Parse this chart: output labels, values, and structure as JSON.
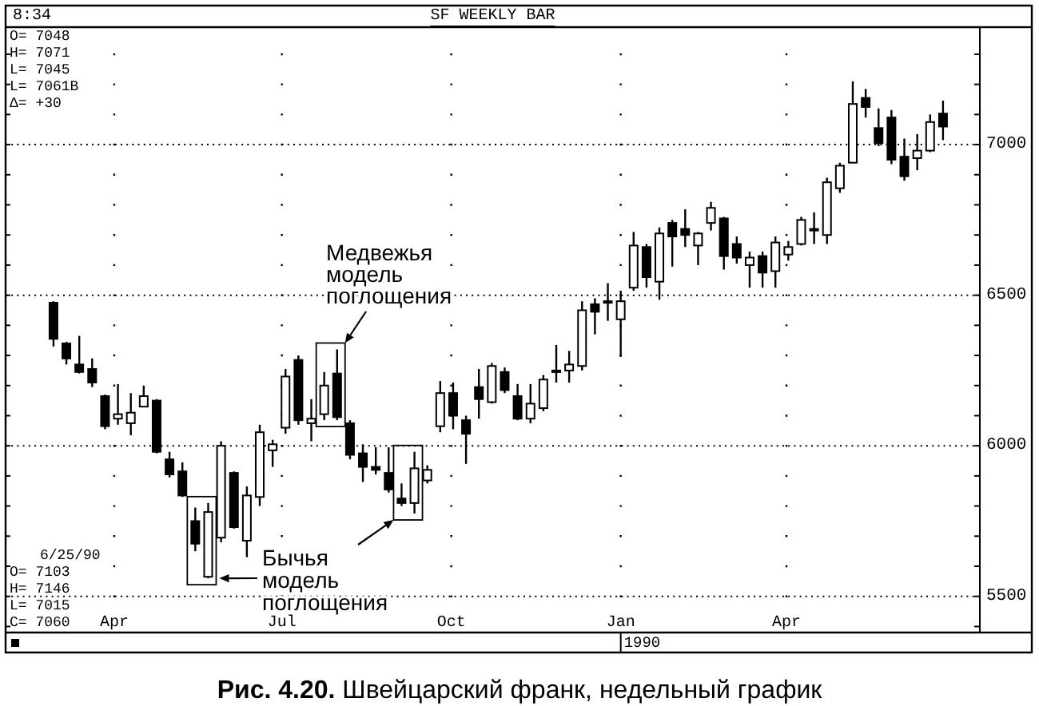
{
  "chart_data": {
    "type": "candlestick",
    "title": "SF WEEKLY BAR",
    "x": [
      "1989-02-27",
      "1989-03-06",
      "1989-03-13",
      "1989-03-20",
      "1989-03-27",
      "1989-04-03",
      "1989-04-10",
      "1989-04-17",
      "1989-04-24",
      "1989-05-01",
      "1989-05-08",
      "1989-05-15",
      "1989-05-22",
      "1989-05-29",
      "1989-06-05",
      "1989-06-12",
      "1989-06-19",
      "1989-06-26",
      "1989-07-03",
      "1989-07-10",
      "1989-07-17",
      "1989-07-24",
      "1989-07-31",
      "1989-08-07",
      "1989-08-14",
      "1989-08-21",
      "1989-08-28",
      "1989-09-04",
      "1989-09-11",
      "1989-09-18",
      "1989-09-25",
      "1989-10-02",
      "1989-10-09",
      "1989-10-16",
      "1989-10-23",
      "1989-10-30",
      "1989-11-06",
      "1989-11-13",
      "1989-11-20",
      "1989-11-27",
      "1989-12-04",
      "1989-12-11",
      "1989-12-18",
      "1989-12-25",
      "1990-01-01",
      "1990-01-08",
      "1990-01-15",
      "1990-01-22",
      "1990-01-29",
      "1990-02-05",
      "1990-02-12",
      "1990-02-19",
      "1990-02-26",
      "1990-03-05",
      "1990-03-12",
      "1990-03-19",
      "1990-03-26",
      "1990-04-02",
      "1990-04-09",
      "1990-04-16",
      "1990-04-23",
      "1990-04-30",
      "1990-05-07",
      "1990-05-14",
      "1990-05-21",
      "1990-05-28",
      "1990-06-04",
      "1990-06-11",
      "1990-06-18",
      "1990-06-25"
    ],
    "ohlc": [
      [
        6475,
        6480,
        6330,
        6355
      ],
      [
        6340,
        6345,
        6270,
        6290
      ],
      [
        6270,
        6365,
        6240,
        6245
      ],
      [
        6255,
        6290,
        6195,
        6210
      ],
      [
        6165,
        6170,
        6055,
        6065
      ],
      [
        6090,
        6205,
        6070,
        6105
      ],
      [
        6075,
        6175,
        6035,
        6110
      ],
      [
        6130,
        6200,
        6130,
        6165
      ],
      [
        6150,
        6155,
        5975,
        5980
      ],
      [
        5955,
        5980,
        5895,
        5905
      ],
      [
        5915,
        5945,
        5830,
        5835
      ],
      [
        5750,
        5795,
        5650,
        5675
      ],
      [
        5565,
        5810,
        5560,
        5780
      ],
      [
        5695,
        6015,
        5680,
        6000
      ],
      [
        5910,
        5915,
        5725,
        5730
      ],
      [
        5685,
        5865,
        5630,
        5835
      ],
      [
        5830,
        6070,
        5800,
        6045
      ],
      [
        5985,
        6020,
        5930,
        6005
      ],
      [
        6060,
        6255,
        6040,
        6230
      ],
      [
        6285,
        6300,
        6070,
        6085
      ],
      [
        6075,
        6155,
        6015,
        6090
      ],
      [
        6105,
        6245,
        6085,
        6200
      ],
      [
        6240,
        6320,
        6085,
        6095
      ],
      [
        6075,
        6085,
        5955,
        5970
      ],
      [
        5975,
        6005,
        5880,
        5930
      ],
      [
        5930,
        5995,
        5905,
        5920
      ],
      [
        5910,
        5995,
        5845,
        5855
      ],
      [
        5825,
        5875,
        5800,
        5810
      ],
      [
        5810,
        5980,
        5775,
        5925
      ],
      [
        5885,
        5935,
        5875,
        5920
      ],
      [
        6065,
        6215,
        6045,
        6175
      ],
      [
        6175,
        6210,
        6055,
        6100
      ],
      [
        6085,
        6100,
        5940,
        6040
      ],
      [
        6195,
        6255,
        6090,
        6155
      ],
      [
        6145,
        6275,
        6140,
        6265
      ],
      [
        6245,
        6260,
        6175,
        6185
      ],
      [
        6165,
        6205,
        6085,
        6090
      ],
      [
        6090,
        6205,
        6075,
        6140
      ],
      [
        6125,
        6235,
        6115,
        6220
      ],
      [
        6245,
        6335,
        6210,
        6250
      ],
      [
        6250,
        6315,
        6210,
        6270
      ],
      [
        6265,
        6480,
        6250,
        6450
      ],
      [
        6470,
        6490,
        6370,
        6445
      ],
      [
        6475,
        6540,
        6415,
        6480
      ],
      [
        6420,
        6515,
        6295,
        6480
      ],
      [
        6525,
        6710,
        6515,
        6665
      ],
      [
        6660,
        6670,
        6525,
        6560
      ],
      [
        6545,
        6725,
        6485,
        6705
      ],
      [
        6740,
        6750,
        6595,
        6695
      ],
      [
        6720,
        6785,
        6660,
        6700
      ],
      [
        6665,
        6710,
        6600,
        6705
      ],
      [
        6740,
        6810,
        6715,
        6790
      ],
      [
        6755,
        6760,
        6585,
        6630
      ],
      [
        6670,
        6695,
        6605,
        6625
      ],
      [
        6600,
        6645,
        6525,
        6625
      ],
      [
        6630,
        6645,
        6525,
        6575
      ],
      [
        6580,
        6695,
        6525,
        6675
      ],
      [
        6635,
        6680,
        6615,
        6660
      ],
      [
        6670,
        6760,
        6665,
        6750
      ],
      [
        6715,
        6775,
        6670,
        6720
      ],
      [
        6700,
        6890,
        6670,
        6875
      ],
      [
        6855,
        6940,
        6840,
        6930
      ],
      [
        6940,
        7210,
        6940,
        7135
      ],
      [
        7155,
        7185,
        7090,
        7125
      ],
      [
        7055,
        7120,
        6995,
        7005
      ],
      [
        7090,
        7115,
        6935,
        6950
      ],
      [
        6960,
        7020,
        6880,
        6895
      ],
      [
        6955,
        7035,
        6915,
        6980
      ],
      [
        6980,
        7100,
        6975,
        7075
      ],
      [
        7103,
        7146,
        7015,
        7060
      ]
    ],
    "xlim": [
      "1989-02-01",
      "1990-07-15"
    ],
    "xticks": [
      {
        "value": "1989-04-01",
        "label": "Apr"
      },
      {
        "value": "1989-07-01",
        "label": "Jul"
      },
      {
        "value": "1989-10-01",
        "label": "Oct"
      },
      {
        "value": "1990-01-01",
        "label": "Jan"
      },
      {
        "value": "1990-04-01",
        "label": "Apr"
      }
    ],
    "ylim": [
      5380,
      7390
    ],
    "yticks": [
      {
        "value": 5400,
        "label": null
      },
      5500,
      {
        "value": 5600,
        "label": null
      },
      {
        "value": 5700,
        "label": null
      },
      {
        "value": 5800,
        "label": null
      },
      {
        "value": 5900,
        "label": null
      },
      6000,
      {
        "value": 6100,
        "label": null
      },
      {
        "value": 6200,
        "label": null
      },
      {
        "value": 6300,
        "label": null
      },
      {
        "value": 6400,
        "label": null
      },
      6500,
      {
        "value": 6600,
        "label": null
      },
      {
        "value": 6700,
        "label": null
      },
      {
        "value": 6800,
        "label": null
      },
      {
        "value": 6900,
        "label": null
      },
      7000,
      {
        "value": 7100,
        "label": null
      },
      {
        "value": 7200,
        "label": null
      },
      {
        "value": 7300,
        "label": null
      }
    ],
    "grid": true,
    "annotations": [
      "8:34",
      "O= 7048",
      "H= 7071",
      "L= 7045",
      "L= 7061B",
      "Δ= +30",
      "6/25/90",
      "O= 7103",
      "H= 7146",
      "L= 7015",
      "C= 7060",
      {
        "text": "Медвежья модель поглощения",
        "x": "1989-07-31",
        "y": 6320
      },
      {
        "text": "Бычья модель поглощения",
        "x": "1989-05-22",
        "y": 5560
      },
      "1990",
      "Рис. 4.20. Швейцарский франк, недельный график"
    ]
  }
}
